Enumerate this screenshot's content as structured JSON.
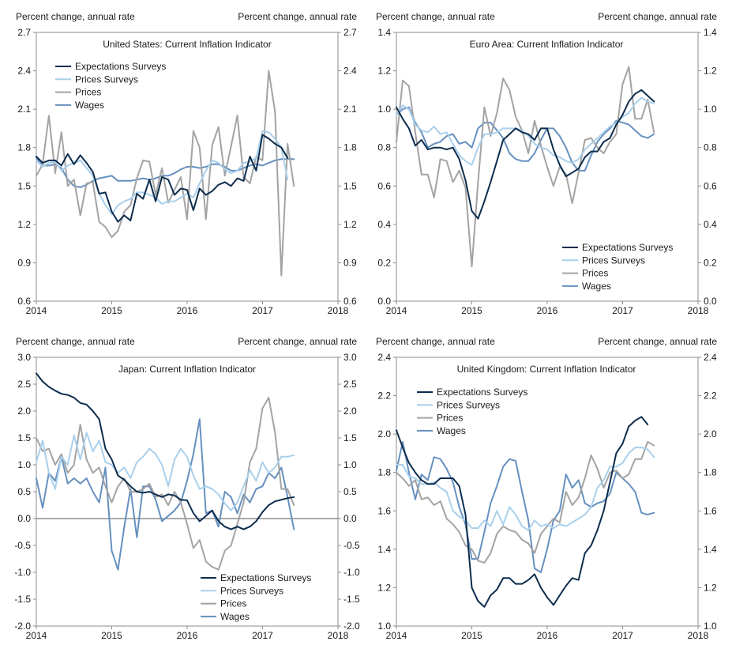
{
  "colors": {
    "expectations": "#0d2d4e",
    "prices_surveys": "#a9d0ec",
    "prices": "#a3a3a3",
    "wages": "#6690bf"
  },
  "chart_data": [
    {
      "type": "line",
      "title": "United States: Current Inflation Indicator",
      "ylabel_left": "Percent change, annual rate",
      "ylabel_right": "Percent change, annual rate",
      "ylim": [
        0.6,
        2.7
      ],
      "yticks": [
        "0.6",
        "0.9",
        "1.2",
        "1.5",
        "1.8",
        "2.1",
        "2.4",
        "2.7"
      ],
      "xlim": [
        2014,
        2018
      ],
      "xticks": [
        "2014",
        "2015",
        "2016",
        "2017",
        "2018"
      ],
      "legend_position": "top-left",
      "x_start": 2014,
      "x_step": 0.0833,
      "series": [
        {
          "name": "Expectations Surveys",
          "color_key": "expectations",
          "values": [
            1.73,
            1.68,
            1.7,
            1.7,
            1.66,
            1.75,
            1.67,
            1.74,
            1.68,
            1.61,
            1.44,
            1.45,
            1.3,
            1.22,
            1.27,
            1.23,
            1.44,
            1.4,
            1.55,
            1.38,
            1.57,
            1.55,
            1.43,
            1.48,
            1.47,
            1.31,
            1.48,
            1.43,
            1.46,
            1.51,
            1.53,
            1.5,
            1.56,
            1.54,
            1.73,
            1.62,
            1.9,
            1.87,
            1.83,
            1.8,
            1.72
          ]
        },
        {
          "name": "Prices Surveys",
          "color_key": "prices_surveys",
          "values": [
            1.7,
            1.65,
            1.68,
            1.69,
            1.62,
            1.66,
            1.68,
            1.7,
            1.64,
            1.58,
            1.44,
            1.35,
            1.28,
            1.35,
            1.38,
            1.4,
            1.45,
            1.45,
            1.43,
            1.41,
            1.36,
            1.38,
            1.38,
            1.41,
            1.44,
            1.41,
            1.52,
            1.62,
            1.7,
            1.68,
            1.63,
            1.6,
            1.62,
            1.68,
            1.69,
            1.72,
            1.93,
            1.92,
            1.87,
            1.8,
            1.55
          ]
        },
        {
          "name": "Prices",
          "color_key": "prices",
          "values": [
            1.58,
            1.67,
            2.05,
            1.6,
            1.92,
            1.5,
            1.55,
            1.27,
            1.52,
            1.53,
            1.22,
            1.18,
            1.1,
            1.15,
            1.3,
            1.35,
            1.56,
            1.7,
            1.69,
            1.43,
            1.64,
            1.37,
            1.47,
            1.57,
            1.24,
            1.93,
            1.8,
            1.24,
            1.82,
            1.96,
            1.58,
            1.81,
            2.05,
            1.57,
            1.52,
            1.73,
            1.7,
            2.4,
            2.08,
            0.8,
            1.83,
            1.5
          ]
        },
        {
          "name": "Wages",
          "color_key": "wages",
          "values": [
            1.72,
            1.66,
            1.66,
            1.67,
            1.64,
            1.55,
            1.5,
            1.49,
            1.51,
            1.54,
            1.56,
            1.57,
            1.58,
            1.54,
            1.54,
            1.54,
            1.55,
            1.56,
            1.55,
            1.56,
            1.58,
            1.58,
            1.6,
            1.63,
            1.65,
            1.65,
            1.64,
            1.65,
            1.67,
            1.67,
            1.65,
            1.62,
            1.62,
            1.64,
            1.66,
            1.67,
            1.66,
            1.68,
            1.7,
            1.71,
            1.71,
            1.71
          ]
        }
      ]
    },
    {
      "type": "line",
      "title": "Euro Area: Current Inflation Indicator",
      "ylabel_left": "Percent change, annual rate",
      "ylabel_right": "Percent change, annual rate",
      "ylim": [
        0.0,
        1.4
      ],
      "yticks": [
        "0.0",
        "0.2",
        "0.4",
        "0.6",
        "0.8",
        "1.0",
        "1.2",
        "1.4"
      ],
      "xlim": [
        2014,
        2018
      ],
      "xticks": [
        "2014",
        "2015",
        "2016",
        "2017",
        "2018"
      ],
      "legend_position": "bottom-right",
      "x_start": 2014,
      "x_step": 0.0833,
      "series": [
        {
          "name": "Expectations Surveys",
          "color_key": "expectations",
          "values": [
            1.01,
            0.95,
            0.9,
            0.81,
            0.84,
            0.79,
            0.8,
            0.8,
            0.79,
            0.8,
            0.74,
            0.63,
            0.47,
            0.43,
            0.52,
            0.62,
            0.73,
            0.84,
            0.87,
            0.9,
            0.88,
            0.87,
            0.84,
            0.9,
            0.9,
            0.79,
            0.71,
            0.65,
            0.67,
            0.69,
            0.75,
            0.78,
            0.78,
            0.83,
            0.85,
            0.92,
            0.97,
            1.04,
            1.08,
            1.1,
            1.07,
            1.04
          ]
        },
        {
          "name": "Prices Surveys",
          "color_key": "prices_surveys",
          "values": [
            0.97,
            1.02,
            1.0,
            0.92,
            0.89,
            0.88,
            0.91,
            0.87,
            0.88,
            0.82,
            0.76,
            0.73,
            0.71,
            0.8,
            0.87,
            0.87,
            0.88,
            0.9,
            0.9,
            0.9,
            0.89,
            0.86,
            0.82,
            0.8,
            0.79,
            0.76,
            0.75,
            0.73,
            0.72,
            0.74,
            0.79,
            0.82,
            0.85,
            0.88,
            0.91,
            0.93,
            0.96,
            0.98,
            1.03,
            1.06,
            1.04,
            1.03
          ]
        },
        {
          "name": "Prices",
          "color_key": "prices",
          "values": [
            0.83,
            1.15,
            1.12,
            0.88,
            0.66,
            0.66,
            0.54,
            0.74,
            0.73,
            0.62,
            0.68,
            0.59,
            0.18,
            0.62,
            1.01,
            0.86,
            0.98,
            1.16,
            1.1,
            0.96,
            0.89,
            0.77,
            0.94,
            0.81,
            0.7,
            0.6,
            0.7,
            0.66,
            0.51,
            0.67,
            0.84,
            0.85,
            0.8,
            0.77,
            0.83,
            0.87,
            1.13,
            1.22,
            0.95,
            0.95,
            1.05,
            0.88
          ]
        },
        {
          "name": "Wages",
          "color_key": "wages",
          "values": [
            0.97,
            1.0,
            1.01,
            0.93,
            0.88,
            0.8,
            0.82,
            0.83,
            0.86,
            0.87,
            0.82,
            0.83,
            0.8,
            0.9,
            0.93,
            0.93,
            0.89,
            0.85,
            0.77,
            0.74,
            0.73,
            0.73,
            0.77,
            0.84,
            0.9,
            0.9,
            0.86,
            0.8,
            0.72,
            0.68,
            0.68,
            0.76,
            0.83,
            0.87,
            0.9,
            0.94,
            0.93,
            0.92,
            0.89,
            0.86,
            0.85,
            0.87
          ]
        }
      ]
    },
    {
      "type": "line",
      "title": "Japan: Current Inflation Indicator",
      "ylabel_left": "Percent change, annual rate",
      "ylabel_right": "Percent change, annual rate",
      "ylim": [
        -2.0,
        3.0
      ],
      "yticks": [
        "-2.0",
        "-1.5",
        "-1.0",
        "-0.5",
        "0.0",
        "0.5",
        "1.0",
        "1.5",
        "2.0",
        "2.5",
        "3.0"
      ],
      "xlim": [
        2014,
        2018
      ],
      "xticks": [
        "2014",
        "2015",
        "2016",
        "2017",
        "2018"
      ],
      "legend_position": "bottom-right",
      "zero_line": true,
      "x_start": 2014,
      "x_step": 0.0833,
      "series": [
        {
          "name": "Expectations Surveys",
          "color_key": "expectations",
          "values": [
            2.7,
            2.55,
            2.45,
            2.38,
            2.32,
            2.3,
            2.25,
            2.15,
            2.12,
            2.0,
            1.85,
            1.3,
            1.1,
            0.8,
            0.72,
            0.6,
            0.5,
            0.48,
            0.5,
            0.45,
            0.4,
            0.45,
            0.43,
            0.35,
            0.34,
            0.1,
            -0.05,
            0.05,
            0.15,
            -0.05,
            -0.15,
            -0.2,
            -0.15,
            -0.2,
            -0.15,
            -0.05,
            0.12,
            0.25,
            0.32,
            0.35,
            0.38,
            0.4
          ]
        },
        {
          "name": "Prices Surveys",
          "color_key": "prices_surveys",
          "values": [
            1.05,
            1.45,
            0.85,
            0.55,
            1.15,
            1.0,
            1.55,
            1.1,
            1.6,
            1.25,
            1.45,
            1.05,
            1.0,
            0.85,
            0.95,
            0.75,
            1.05,
            1.15,
            1.3,
            1.2,
            1.0,
            0.6,
            1.1,
            1.3,
            1.15,
            0.8,
            0.55,
            0.6,
            0.55,
            0.45,
            0.28,
            0.15,
            0.3,
            0.6,
            0.9,
            0.7,
            1.05,
            0.85,
            0.95,
            1.15,
            1.15,
            1.18
          ]
        },
        {
          "name": "Prices",
          "color_key": "prices",
          "values": [
            1.5,
            1.25,
            1.3,
            1.0,
            1.2,
            0.85,
            1.0,
            1.75,
            1.1,
            0.85,
            0.95,
            0.6,
            0.3,
            0.6,
            0.75,
            0.5,
            0.5,
            0.55,
            0.65,
            0.4,
            0.45,
            0.25,
            0.5,
            0.3,
            -0.1,
            -0.55,
            -0.4,
            -0.8,
            -0.9,
            -0.95,
            -0.6,
            -0.5,
            -0.1,
            0.3,
            1.05,
            1.3,
            2.05,
            2.25,
            1.6,
            0.55,
            0.55,
            0.25
          ]
        },
        {
          "name": "Wages",
          "color_key": "wages",
          "values": [
            0.75,
            0.2,
            0.85,
            0.7,
            1.15,
            0.65,
            0.75,
            0.65,
            0.75,
            0.5,
            0.3,
            0.95,
            -0.6,
            -0.95,
            -0.15,
            0.55,
            -0.35,
            0.6,
            0.6,
            0.35,
            -0.05,
            0.05,
            0.15,
            0.3,
            0.7,
            1.2,
            1.85,
            0.1,
            0.15,
            -0.15,
            0.5,
            0.4,
            0.1,
            0.45,
            0.3,
            0.55,
            0.6,
            0.85,
            0.75,
            0.95,
            0.4,
            -0.2
          ]
        }
      ]
    },
    {
      "type": "line",
      "title": "United Kingdom: Current Inflation Indicator",
      "ylabel_left": "Percent change, annual rate",
      "ylabel_right": "Percent change, annual rate",
      "ylim": [
        1.0,
        2.4
      ],
      "yticks": [
        "1.0",
        "1.2",
        "1.4",
        "1.6",
        "1.8",
        "2.0",
        "2.2",
        "2.4"
      ],
      "xlim": [
        2014,
        2018
      ],
      "xticks": [
        "2014",
        "2015",
        "2016",
        "2017",
        "2018"
      ],
      "legend_position": "top-left",
      "x_start": 2014,
      "x_step": 0.0833,
      "series": [
        {
          "name": "Expectations Surveys",
          "color_key": "expectations",
          "values": [
            2.02,
            1.93,
            1.85,
            1.8,
            1.76,
            1.74,
            1.74,
            1.77,
            1.77,
            1.77,
            1.73,
            1.58,
            1.2,
            1.13,
            1.1,
            1.16,
            1.19,
            1.25,
            1.25,
            1.22,
            1.22,
            1.24,
            1.27,
            1.2,
            1.15,
            1.11,
            1.16,
            1.21,
            1.25,
            1.24,
            1.38,
            1.42,
            1.5,
            1.6,
            1.75,
            1.9,
            1.95,
            2.04,
            2.07,
            2.09,
            2.05
          ]
        },
        {
          "name": "Prices Surveys",
          "color_key": "prices_surveys",
          "values": [
            1.84,
            1.84,
            1.78,
            1.77,
            1.74,
            1.74,
            1.75,
            1.72,
            1.7,
            1.6,
            1.57,
            1.55,
            1.51,
            1.51,
            1.55,
            1.52,
            1.6,
            1.53,
            1.62,
            1.58,
            1.52,
            1.5,
            1.55,
            1.52,
            1.53,
            1.51,
            1.53,
            1.52,
            1.54,
            1.56,
            1.58,
            1.62,
            1.72,
            1.76,
            1.83,
            1.83,
            1.85,
            1.9,
            1.93,
            1.93,
            1.92,
            1.88
          ]
        },
        {
          "name": "Prices",
          "color_key": "prices",
          "values": [
            1.8,
            1.77,
            1.73,
            1.76,
            1.66,
            1.67,
            1.63,
            1.65,
            1.56,
            1.53,
            1.49,
            1.42,
            1.4,
            1.34,
            1.33,
            1.38,
            1.48,
            1.52,
            1.5,
            1.49,
            1.45,
            1.43,
            1.38,
            1.48,
            1.52,
            1.56,
            1.54,
            1.7,
            1.63,
            1.67,
            1.77,
            1.89,
            1.82,
            1.72,
            1.8,
            1.81,
            1.77,
            1.79,
            1.87,
            1.87,
            1.96,
            1.94
          ]
        },
        {
          "name": "Wages",
          "color_key": "wages",
          "values": [
            1.81,
            1.96,
            1.8,
            1.66,
            1.79,
            1.76,
            1.88,
            1.87,
            1.82,
            1.75,
            1.62,
            1.53,
            1.35,
            1.35,
            1.49,
            1.64,
            1.73,
            1.83,
            1.87,
            1.86,
            1.7,
            1.55,
            1.3,
            1.28,
            1.4,
            1.55,
            1.6,
            1.79,
            1.72,
            1.76,
            1.64,
            1.62,
            1.64,
            1.65,
            1.69,
            1.8,
            1.77,
            1.74,
            1.7,
            1.59,
            1.58,
            1.59
          ]
        }
      ]
    }
  ]
}
